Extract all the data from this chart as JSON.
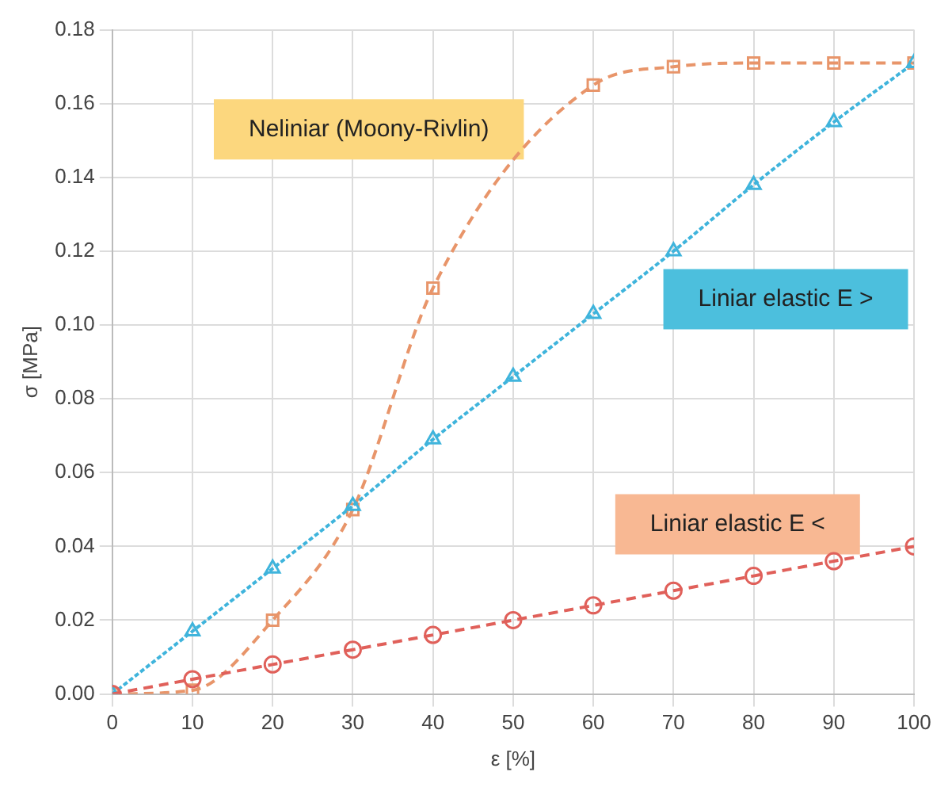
{
  "chart_data": {
    "type": "line",
    "xlabel": "ε [%]",
    "ylabel": "σ [MPa]",
    "x": [
      0,
      10,
      20,
      30,
      40,
      50,
      60,
      70,
      80,
      90,
      100
    ],
    "series": [
      {
        "name": "Neliniar (Moony-Rivlin)",
        "color": "#e8956a",
        "marker": "square",
        "line_style": "dashed",
        "values": [
          0,
          0.001,
          0.02,
          0.05,
          0.11,
          null,
          0.165,
          0.17,
          0.171,
          0.171,
          0.171
        ]
      },
      {
        "name": "Liniar elastic E >",
        "color": "#3fb4dc",
        "marker": "triangle",
        "line_style": "dotted",
        "values": [
          0,
          0.017,
          0.034,
          0.051,
          0.069,
          0.086,
          0.103,
          0.12,
          0.138,
          0.155,
          0.171
        ]
      },
      {
        "name": "Liniar elastic E <",
        "color": "#e0605a",
        "marker": "circle",
        "line_style": "dashed",
        "values": [
          0,
          0.004,
          0.008,
          0.012,
          0.016,
          0.02,
          0.024,
          0.028,
          0.032,
          0.036,
          0.04
        ]
      }
    ],
    "xlim": [
      0,
      100
    ],
    "xticks": [
      0,
      10,
      20,
      30,
      40,
      50,
      60,
      70,
      80,
      90,
      100
    ],
    "ylim": [
      0,
      0.18
    ],
    "yticks": [
      {
        "value": 0,
        "label": "0.00"
      },
      {
        "value": 0.02,
        "label": "0.02"
      },
      {
        "value": 0.04,
        "label": "0.04"
      },
      {
        "value": 0.06,
        "label": "0.06"
      },
      {
        "value": 0.08,
        "label": "0.08"
      },
      {
        "value": 0.1,
        "label": "0.10"
      },
      {
        "value": 0.12,
        "label": "0.12"
      },
      {
        "value": 0.14,
        "label": "0.14"
      },
      {
        "value": 0.16,
        "label": "0.16"
      },
      {
        "value": 0.18,
        "label": "0.18"
      }
    ],
    "grid": true,
    "legend": false
  }
}
